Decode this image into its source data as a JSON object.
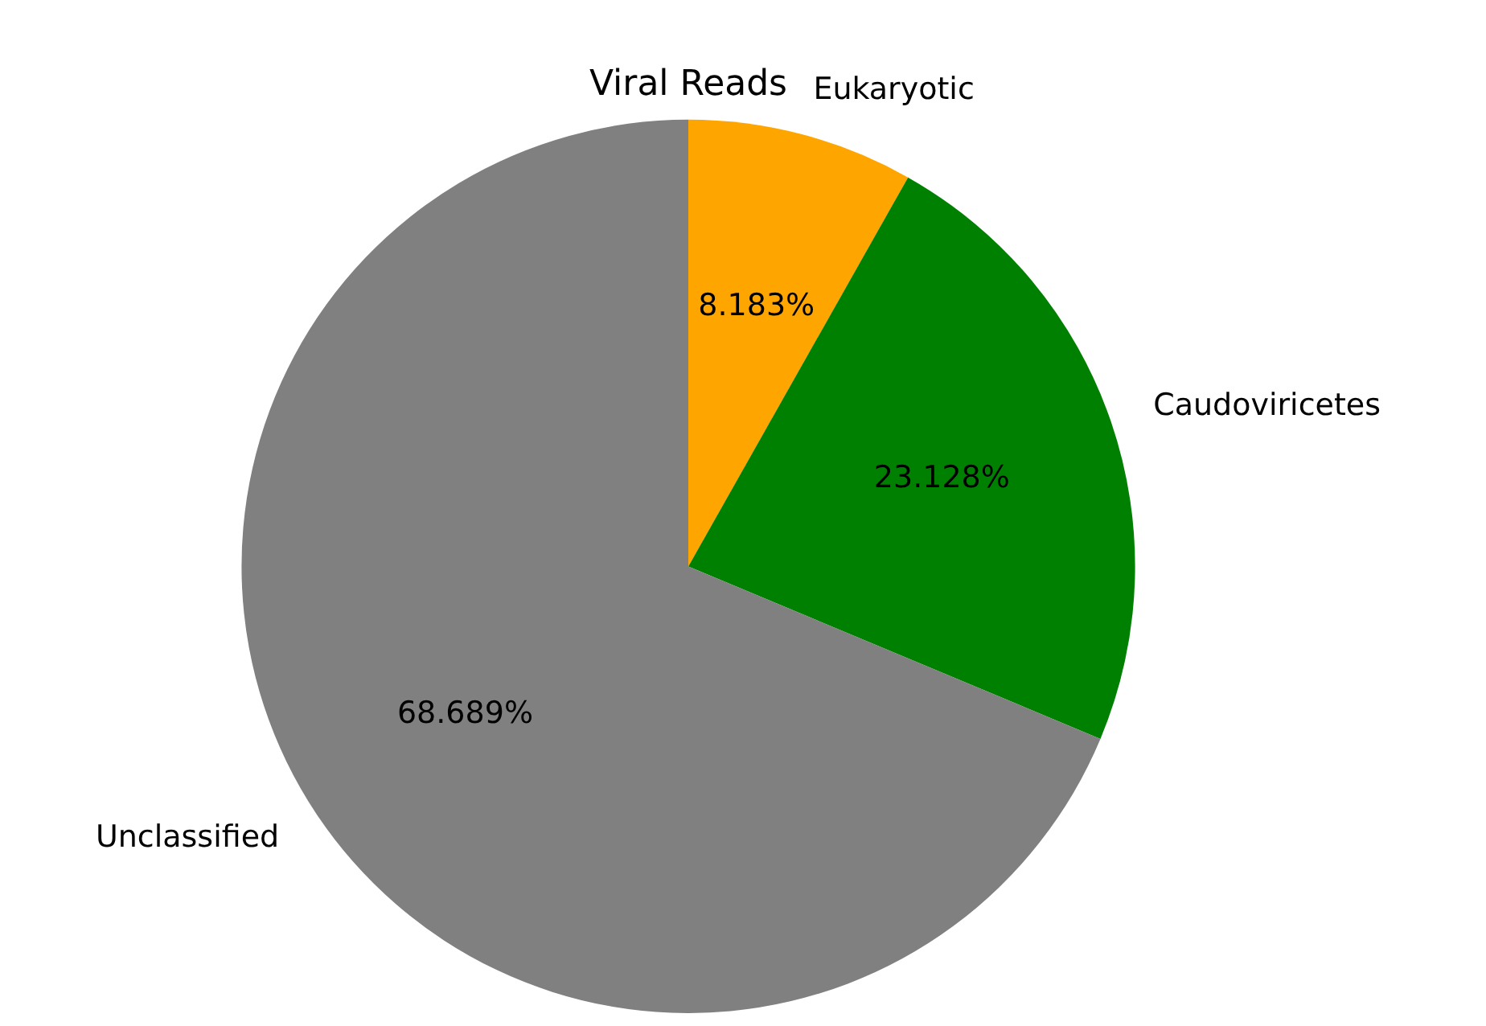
{
  "chart_data": {
    "type": "pie",
    "title": "Viral Reads",
    "categories": [
      "Eukaryotic",
      "Caudoviricetes",
      "Unclassified"
    ],
    "values": [
      8.183,
      23.128,
      68.689
    ],
    "colors": [
      "#ffa500",
      "#008000",
      "#808080"
    ],
    "value_labels": [
      "8.183%",
      "23.128%",
      "68.689%"
    ],
    "legend": false
  }
}
